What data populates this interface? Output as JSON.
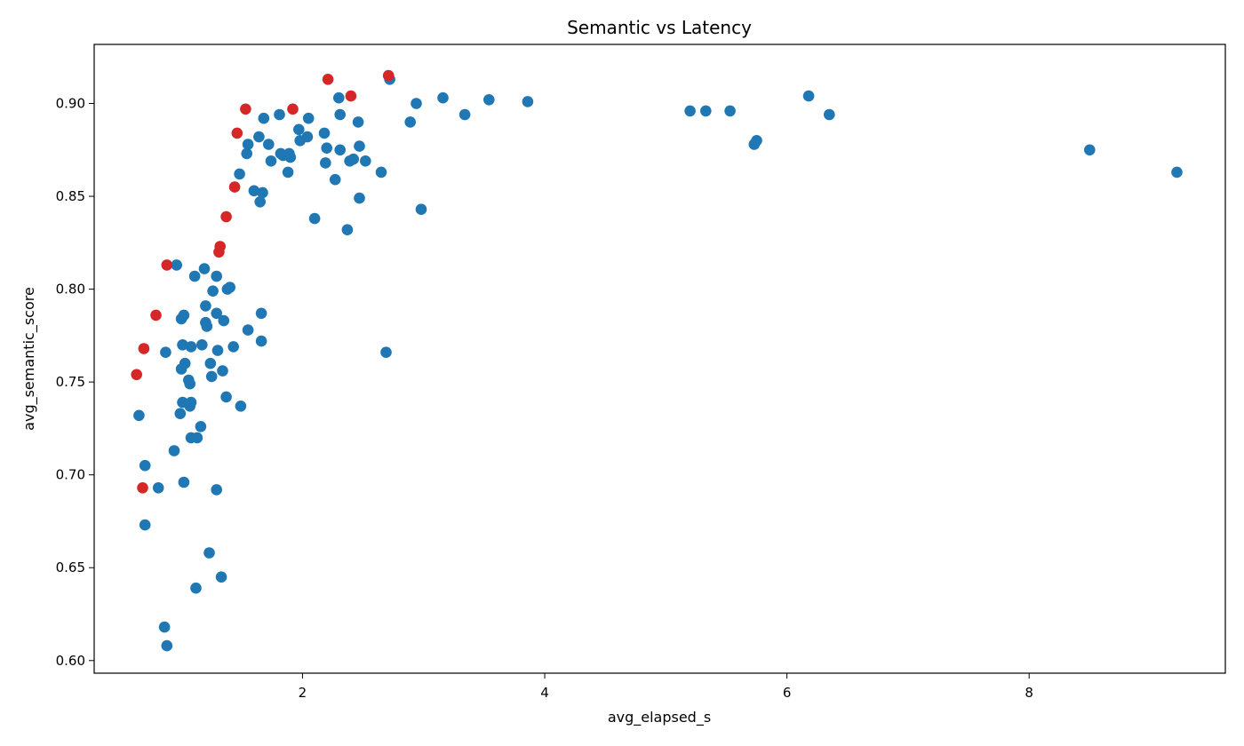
{
  "chart_data": {
    "type": "scatter",
    "title": "Semantic vs Latency",
    "xlabel": "avg_elapsed_s",
    "ylabel": "avg_semantic_score",
    "xlim": [
      0.28,
      9.62
    ],
    "ylim": [
      0.5932,
      0.9318
    ],
    "xticks": [
      2,
      4,
      6,
      8
    ],
    "xtick_labels": [
      "2",
      "4",
      "6",
      "8"
    ],
    "yticks": [
      0.6,
      0.65,
      0.7,
      0.75,
      0.8,
      0.85,
      0.9
    ],
    "ytick_labels": [
      "0.60",
      "0.65",
      "0.70",
      "0.75",
      "0.80",
      "0.85",
      "0.90"
    ],
    "grid": false,
    "legend": "none",
    "colors": {
      "default": "#1f77b4",
      "highlight": "#d62728"
    },
    "series": [
      {
        "color": "#1f77b4",
        "points": [
          [
            0.65,
            0.732
          ],
          [
            0.7,
            0.705
          ],
          [
            0.7,
            0.673
          ],
          [
            0.81,
            0.693
          ],
          [
            0.86,
            0.618
          ],
          [
            0.87,
            0.766
          ],
          [
            0.88,
            0.608
          ],
          [
            0.94,
            0.713
          ],
          [
            0.96,
            0.813
          ],
          [
            0.99,
            0.733
          ],
          [
            1.0,
            0.757
          ],
          [
            1.0,
            0.784
          ],
          [
            1.01,
            0.77
          ],
          [
            1.01,
            0.739
          ],
          [
            1.02,
            0.696
          ],
          [
            1.02,
            0.786
          ],
          [
            1.03,
            0.76
          ],
          [
            1.06,
            0.751
          ],
          [
            1.07,
            0.749
          ],
          [
            1.07,
            0.737
          ],
          [
            1.08,
            0.739
          ],
          [
            1.08,
            0.769
          ],
          [
            1.08,
            0.72
          ],
          [
            1.11,
            0.807
          ],
          [
            1.12,
            0.639
          ],
          [
            1.13,
            0.72
          ],
          [
            1.16,
            0.726
          ],
          [
            1.17,
            0.77
          ],
          [
            1.19,
            0.811
          ],
          [
            1.2,
            0.791
          ],
          [
            1.2,
            0.782
          ],
          [
            1.21,
            0.78
          ],
          [
            1.23,
            0.658
          ],
          [
            1.24,
            0.76
          ],
          [
            1.25,
            0.753
          ],
          [
            1.26,
            0.799
          ],
          [
            1.29,
            0.787
          ],
          [
            1.29,
            0.807
          ],
          [
            1.29,
            0.692
          ],
          [
            1.3,
            0.767
          ],
          [
            1.33,
            0.645
          ],
          [
            1.34,
            0.756
          ],
          [
            1.35,
            0.783
          ],
          [
            1.37,
            0.742
          ],
          [
            1.38,
            0.8
          ],
          [
            1.4,
            0.801
          ],
          [
            1.43,
            0.769
          ],
          [
            1.48,
            0.862
          ],
          [
            1.49,
            0.737
          ],
          [
            1.54,
            0.873
          ],
          [
            1.55,
            0.878
          ],
          [
            1.55,
            0.778
          ],
          [
            1.6,
            0.853
          ],
          [
            1.64,
            0.882
          ],
          [
            1.65,
            0.847
          ],
          [
            1.66,
            0.787
          ],
          [
            1.66,
            0.772
          ],
          [
            1.67,
            0.852
          ],
          [
            1.68,
            0.892
          ],
          [
            1.72,
            0.878
          ],
          [
            1.74,
            0.869
          ],
          [
            1.81,
            0.894
          ],
          [
            1.82,
            0.873
          ],
          [
            1.84,
            0.872
          ],
          [
            1.88,
            0.863
          ],
          [
            1.89,
            0.873
          ],
          [
            1.9,
            0.871
          ],
          [
            1.97,
            0.886
          ],
          [
            1.98,
            0.88
          ],
          [
            2.04,
            0.882
          ],
          [
            2.05,
            0.892
          ],
          [
            2.1,
            0.838
          ],
          [
            2.18,
            0.884
          ],
          [
            2.19,
            0.868
          ],
          [
            2.2,
            0.876
          ],
          [
            2.27,
            0.859
          ],
          [
            2.3,
            0.903
          ],
          [
            2.31,
            0.875
          ],
          [
            2.31,
            0.894
          ],
          [
            2.37,
            0.832
          ],
          [
            2.39,
            0.869
          ],
          [
            2.42,
            0.87
          ],
          [
            2.46,
            0.89
          ],
          [
            2.47,
            0.877
          ],
          [
            2.47,
            0.849
          ],
          [
            2.52,
            0.869
          ],
          [
            2.65,
            0.863
          ],
          [
            2.69,
            0.766
          ],
          [
            2.72,
            0.913
          ],
          [
            2.89,
            0.89
          ],
          [
            2.94,
            0.9
          ],
          [
            2.98,
            0.843
          ],
          [
            3.16,
            0.903
          ],
          [
            3.34,
            0.894
          ],
          [
            3.54,
            0.902
          ],
          [
            3.86,
            0.901
          ],
          [
            5.2,
            0.896
          ],
          [
            5.33,
            0.896
          ],
          [
            5.53,
            0.896
          ],
          [
            5.73,
            0.878
          ],
          [
            5.75,
            0.88
          ],
          [
            6.18,
            0.904
          ],
          [
            6.35,
            0.894
          ],
          [
            8.5,
            0.875
          ],
          [
            9.22,
            0.863
          ]
        ]
      },
      {
        "color": "#d62728",
        "points": [
          [
            0.63,
            0.754
          ],
          [
            0.68,
            0.693
          ],
          [
            0.69,
            0.768
          ],
          [
            0.79,
            0.786
          ],
          [
            0.88,
            0.813
          ],
          [
            1.31,
            0.82
          ],
          [
            1.32,
            0.823
          ],
          [
            1.37,
            0.839
          ],
          [
            1.44,
            0.855
          ],
          [
            1.46,
            0.884
          ],
          [
            1.53,
            0.897
          ],
          [
            1.92,
            0.897
          ],
          [
            2.21,
            0.913
          ],
          [
            2.4,
            0.904
          ],
          [
            2.71,
            0.915
          ]
        ]
      }
    ]
  }
}
